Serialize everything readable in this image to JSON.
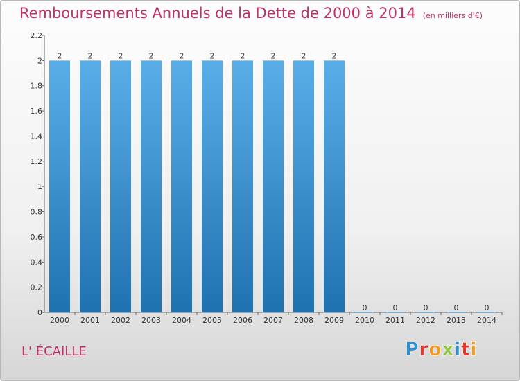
{
  "title": "Remboursements Annuels de la Dette de 2000 à 2014",
  "unit": "(en milliers d'€)",
  "commune": "L' ÉCAILLE",
  "logo": {
    "text": "Proxiti",
    "colors": [
      "#2f8fd0",
      "#e8362a",
      "#f39a1e",
      "#8dc63f",
      "#2f8fd0",
      "#e8362a",
      "#f39a1e"
    ]
  },
  "colors": {
    "title": "#c0306a",
    "bar_top": "#5aaee8",
    "bar_bottom": "#1f72b0"
  },
  "chart_data": {
    "type": "bar",
    "categories": [
      "2000",
      "2001",
      "2002",
      "2003",
      "2004",
      "2005",
      "2006",
      "2007",
      "2008",
      "2009",
      "2010",
      "2011",
      "2012",
      "2013",
      "2014"
    ],
    "values": [
      2,
      2,
      2,
      2,
      2,
      2,
      2,
      2,
      2,
      2,
      0,
      0,
      0,
      0,
      0
    ],
    "data_labels": [
      "2",
      "2",
      "2",
      "2",
      "2",
      "2",
      "2",
      "2",
      "2",
      "2",
      "0",
      "0",
      "0",
      "0",
      "0"
    ],
    "yticks": [
      "0",
      "0.2",
      "0.4",
      "0.6",
      "0.8",
      "1",
      "1.2",
      "1.4",
      "1.6",
      "1.8",
      "2",
      "2.2"
    ],
    "ylim": [
      0,
      2.2
    ],
    "title": "Remboursements Annuels de la Dette de 2000 à 2014",
    "xlabel": "",
    "ylabel": "",
    "grid": false,
    "legend": "none"
  }
}
